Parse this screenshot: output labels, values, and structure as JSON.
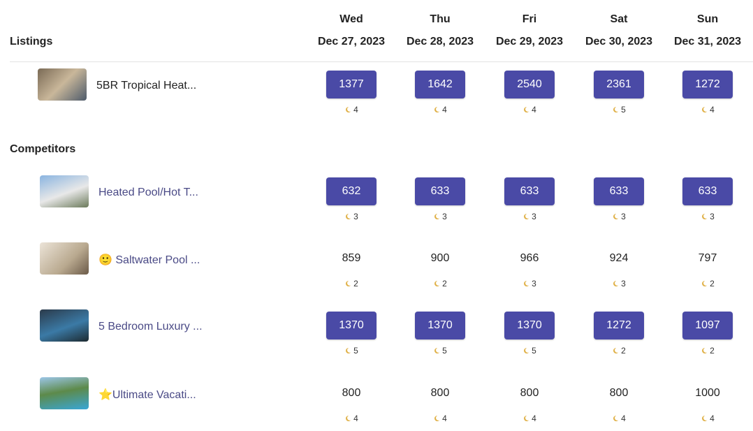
{
  "header": {
    "listings_label": "Listings",
    "days": [
      {
        "day": "Wed",
        "date": "Dec 27, 2023"
      },
      {
        "day": "Thu",
        "date": "Dec 28, 2023"
      },
      {
        "day": "Fri",
        "date": "Dec 29, 2023"
      },
      {
        "day": "Sat",
        "date": "Dec 30, 2023"
      },
      {
        "day": "Sun",
        "date": "Dec 31, 2023"
      }
    ]
  },
  "listings": [
    {
      "name": "5BR Tropical Heat...",
      "highlighted": true,
      "prices": [
        1377,
        1642,
        2540,
        2361,
        1272
      ],
      "nights": [
        4,
        4,
        4,
        5,
        4
      ]
    }
  ],
  "competitors_label": "Competitors",
  "competitors": [
    {
      "name": "Heated Pool/Hot T...",
      "highlighted": true,
      "prices": [
        632,
        633,
        633,
        633,
        633
      ],
      "nights": [
        3,
        3,
        3,
        3,
        3
      ]
    },
    {
      "name": "🙂 Saltwater Pool ...",
      "highlighted": false,
      "prices": [
        859,
        900,
        966,
        924,
        797
      ],
      "nights": [
        2,
        2,
        3,
        3,
        2
      ]
    },
    {
      "name": "5 Bedroom Luxury ...",
      "highlighted": true,
      "prices": [
        1370,
        1370,
        1370,
        1272,
        1097
      ],
      "nights": [
        5,
        5,
        5,
        2,
        2
      ]
    },
    {
      "name": "⭐Ultimate Vacati...",
      "highlighted": false,
      "prices": [
        800,
        800,
        800,
        800,
        1000
      ],
      "nights": [
        4,
        4,
        4,
        4,
        4
      ]
    }
  ]
}
